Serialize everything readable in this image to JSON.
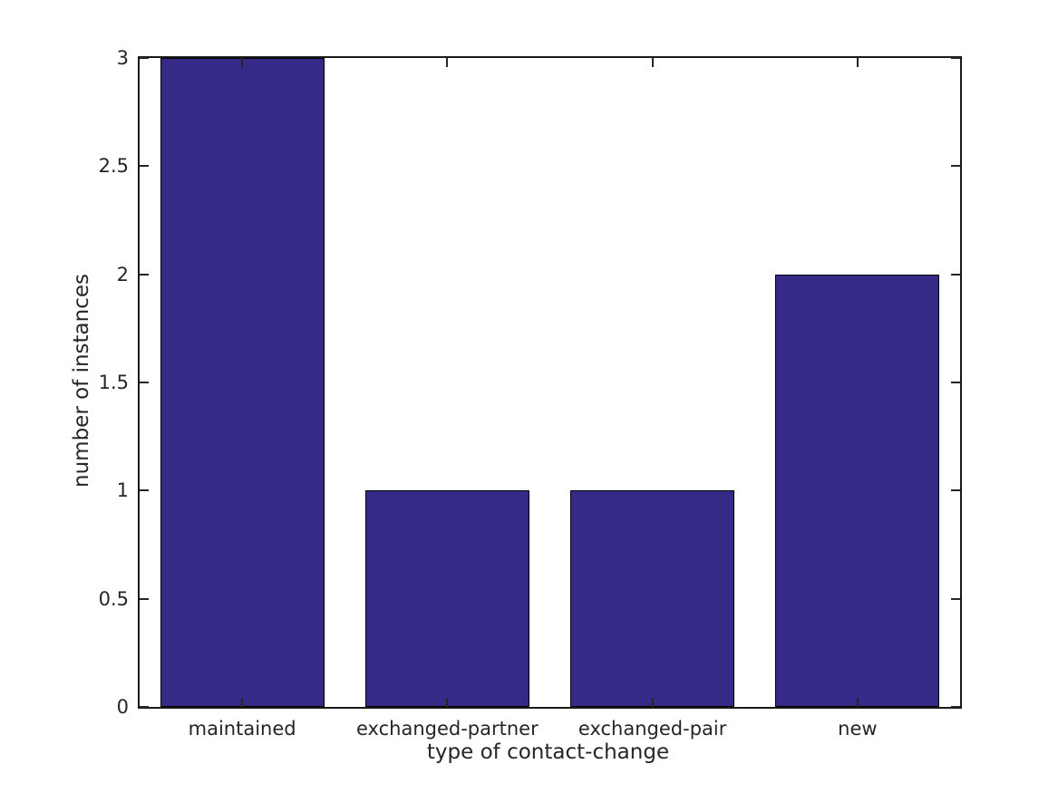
{
  "chart_data": {
    "type": "bar",
    "title": "",
    "xlabel": "type of contact-change",
    "ylabel": "number of instances",
    "categories": [
      "maintained",
      "exchanged-partner",
      "exchanged-pair",
      "new"
    ],
    "values": [
      3,
      1,
      1,
      2
    ],
    "ylim": [
      0,
      3
    ],
    "yticks": [
      0,
      0.5,
      1,
      1.5,
      2,
      2.5,
      3
    ],
    "grid": false,
    "legend_visible": false,
    "bar_width_fraction": 0.8,
    "colors": {
      "bar_fill": "#352A87",
      "bar_edge": "#000000",
      "axis": "#262626",
      "text": "#262626",
      "background": "#ffffff"
    }
  }
}
